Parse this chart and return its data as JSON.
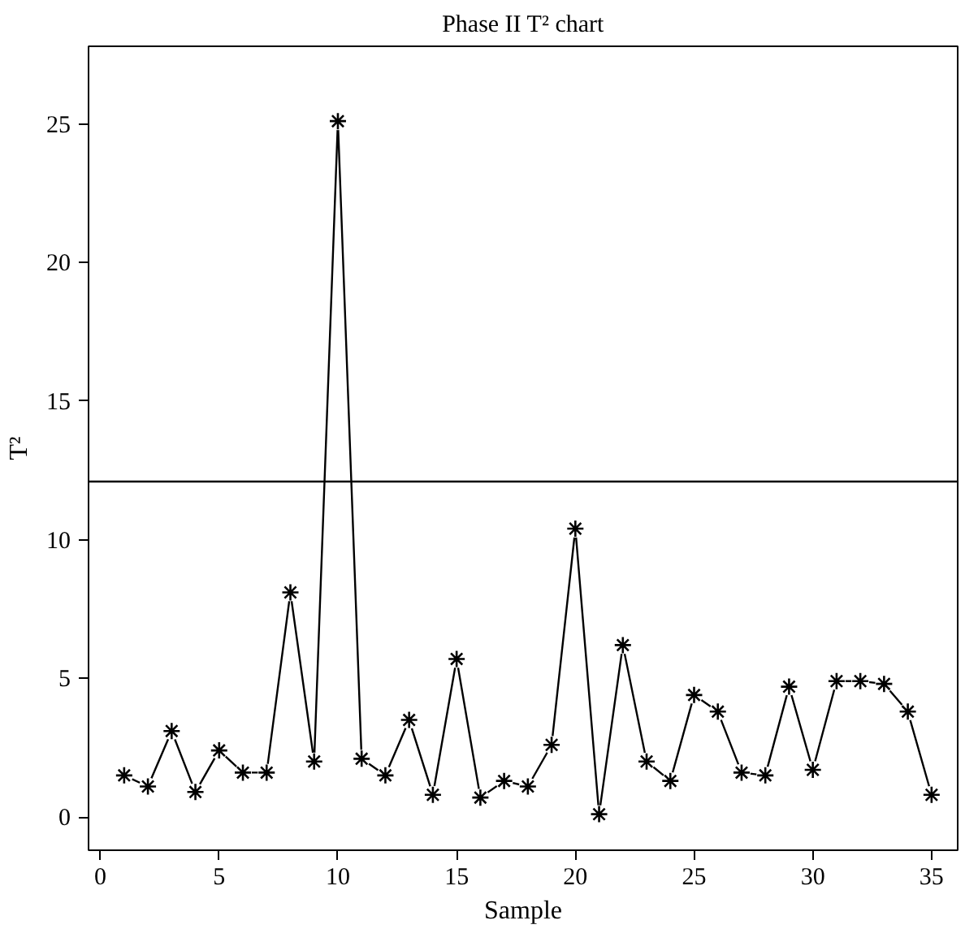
{
  "chart_data": {
    "type": "line",
    "title": "Phase II T² chart",
    "xlabel": "Sample",
    "ylabel": "T²",
    "x": [
      1,
      2,
      3,
      4,
      5,
      6,
      7,
      8,
      9,
      10,
      11,
      12,
      13,
      14,
      15,
      16,
      17,
      18,
      19,
      20,
      21,
      22,
      23,
      24,
      25,
      26,
      27,
      28,
      29,
      30,
      31,
      32,
      33,
      34,
      35
    ],
    "series": [
      {
        "color": "#000000",
        "values": [
          1.5,
          1.1,
          3.1,
          0.9,
          2.4,
          1.6,
          1.6,
          8.1,
          2.0,
          25.1,
          2.1,
          1.5,
          3.5,
          0.8,
          5.7,
          0.7,
          1.3,
          1.1,
          2.6,
          10.4,
          0.1,
          6.2,
          2.0,
          1.3,
          4.4,
          3.8,
          1.6,
          1.5,
          4.7,
          1.7,
          4.9,
          4.9,
          4.8,
          3.8,
          0.8
        ]
      }
    ],
    "xlim": [
      -0.5,
      36.1
    ],
    "ylim": [
      -1.2,
      27.8
    ],
    "xticks": [
      0,
      5,
      10,
      15,
      20,
      25,
      30,
      35
    ],
    "yticks": [
      0,
      5,
      10,
      15,
      20,
      25
    ],
    "ref_lines": [
      {
        "axis": "y",
        "value": 12.1,
        "color": "#000000"
      }
    ],
    "marker": "cross",
    "line_style": "solid",
    "grid": false
  }
}
